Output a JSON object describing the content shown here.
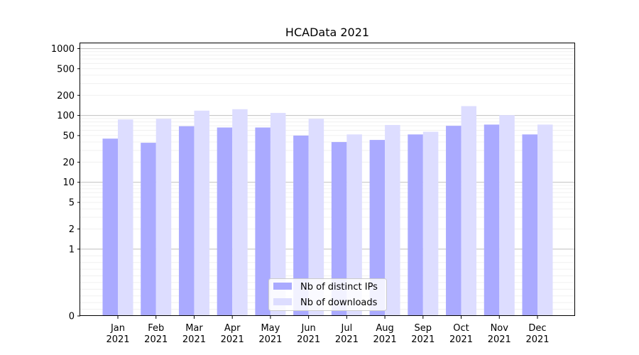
{
  "chart_data": {
    "type": "bar",
    "title": "HCAData 2021",
    "xlabel": "",
    "ylabel": "",
    "y_scale": "symlog",
    "ylim": [
      0,
      1200
    ],
    "y_ticks": [
      0,
      1,
      2,
      5,
      10,
      20,
      50,
      100,
      200,
      500,
      1000
    ],
    "y_tick_labels": [
      "0",
      "1",
      "2",
      "5",
      "10",
      "20",
      "50",
      "100",
      "200",
      "500",
      "1000"
    ],
    "grid": true,
    "legend_position": "bottom-center",
    "categories": [
      "Jan\n2021",
      "Feb\n2021",
      "Mar\n2021",
      "Apr\n2021",
      "May\n2021",
      "Jun\n2021",
      "Jul\n2021",
      "Aug\n2021",
      "Sep\n2021",
      "Oct\n2021",
      "Nov\n2021",
      "Dec\n2021"
    ],
    "category_months": [
      "Jan",
      "Feb",
      "Mar",
      "Apr",
      "May",
      "Jun",
      "Jul",
      "Aug",
      "Sep",
      "Oct",
      "Nov",
      "Dec"
    ],
    "category_years": [
      "2021",
      "2021",
      "2021",
      "2021",
      "2021",
      "2021",
      "2021",
      "2021",
      "2021",
      "2021",
      "2021",
      "2021"
    ],
    "series": [
      {
        "name": "Nb of distinct IPs",
        "color": "#aaaaff",
        "values": [
          45,
          39,
          69,
          66,
          66,
          50,
          40,
          43,
          52,
          70,
          73,
          52
        ]
      },
      {
        "name": "Nb of downloads",
        "color": "#ddddff",
        "values": [
          87,
          89,
          118,
          124,
          109,
          89,
          52,
          72,
          57,
          138,
          101,
          73
        ]
      }
    ]
  }
}
